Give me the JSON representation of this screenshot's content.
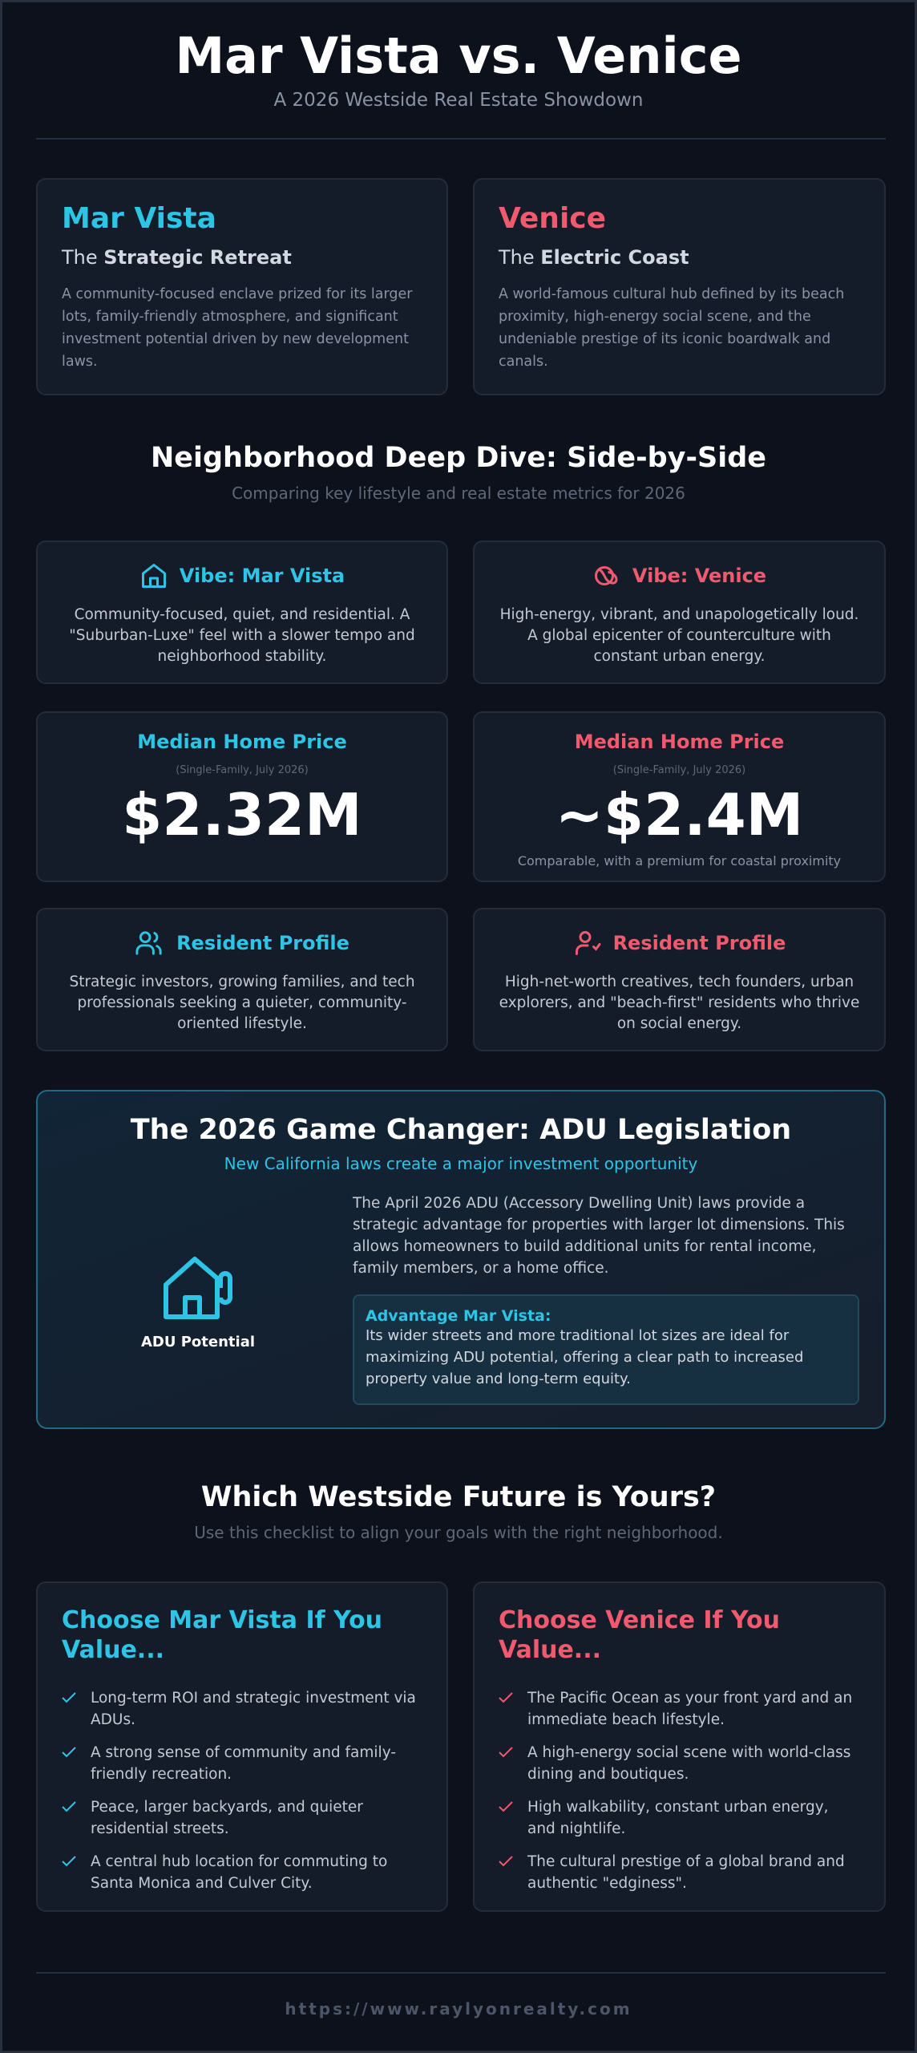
{
  "header": {
    "title": "Mar Vista vs. Venice",
    "subtitle": "A 2026 Westside Real Estate Showdown"
  },
  "intro": [
    {
      "name": "Mar Vista",
      "tagline_prefix": "The",
      "tagline_bold": "Strategic Retreat",
      "description": "A community-focused enclave prized for its larger lots, family-friendly atmosphere, and significant investment potential driven by new development laws."
    },
    {
      "name": "Venice",
      "tagline_prefix": "The",
      "tagline_bold": "Electric Coast",
      "description": "A world-famous cultural hub defined by its beach proximity, high-energy social scene, and the undeniable prestige of its iconic boardwalk and canals."
    }
  ],
  "deep_dive": {
    "title": "Neighborhood Deep Dive: Side-by-Side",
    "subtitle": "Comparing key lifestyle and real estate metrics for 2026",
    "vibe": [
      {
        "title": "Vibe: Mar Vista",
        "text": "Community-focused, quiet, and residential. A \"Suburban-Luxe\" feel with a slower tempo and neighborhood stability."
      },
      {
        "title": "Vibe: Venice",
        "text": "High-energy, vibrant, and unapologetically loud. A global epicenter of counterculture with constant urban energy."
      }
    ],
    "price": [
      {
        "title": "Median Home Price",
        "note": "(Single-Family, July 2026)",
        "value": "$2.32M"
      },
      {
        "title": "Median Home Price",
        "note": "(Single-Family, July 2026)",
        "value": "~$2.4M",
        "caption": "Comparable, with a premium for coastal proximity"
      }
    ],
    "resident": [
      {
        "title": "Resident Profile",
        "text": "Strategic investors, growing families, and tech professionals seeking a quieter, community-oriented lifestyle."
      },
      {
        "title": "Resident Profile",
        "text": "High-net-worth creatives, tech founders, urban explorers, and \"beach-first\" residents who thrive on social energy."
      }
    ]
  },
  "adu": {
    "title": "The 2026 Game Changer: ADU Legislation",
    "subtitle": "New California laws create a major investment opportunity",
    "icon_label": "ADU Potential",
    "paragraph": "The April 2026 ADU (Accessory Dwelling Unit) laws provide a strategic advantage for properties with larger lot dimensions. This allows homeowners to build additional units for rental income, family members, or a home office.",
    "advantage_title": "Advantage Mar Vista:",
    "advantage_text": "Its wider streets and more traditional lot sizes are ideal for maximizing ADU potential, offering a clear path to increased property value and long-term equity."
  },
  "checklist": {
    "title": "Which Westside Future is Yours?",
    "subtitle": "Use this checklist to align your goals with the right neighborhood.",
    "columns": [
      {
        "title": "Choose Mar Vista If You Value...",
        "items": [
          "Long-term ROI and strategic investment via ADUs.",
          "A strong sense of community and family-friendly recreation.",
          "Peace, larger backyards, and quieter residential streets.",
          "A central hub location for commuting to Santa Monica and Culver City."
        ]
      },
      {
        "title": "Choose Venice If You Value...",
        "items": [
          "The Pacific Ocean as your front yard and an immediate beach lifestyle.",
          "A high-energy social scene with world-class dining and boutiques.",
          "High walkability, constant urban energy, and nightlife.",
          "The cultural prestige of a global brand and authentic \"edginess\"."
        ]
      }
    ]
  },
  "footer": {
    "url": "https://www.raylyonrealty.com"
  }
}
